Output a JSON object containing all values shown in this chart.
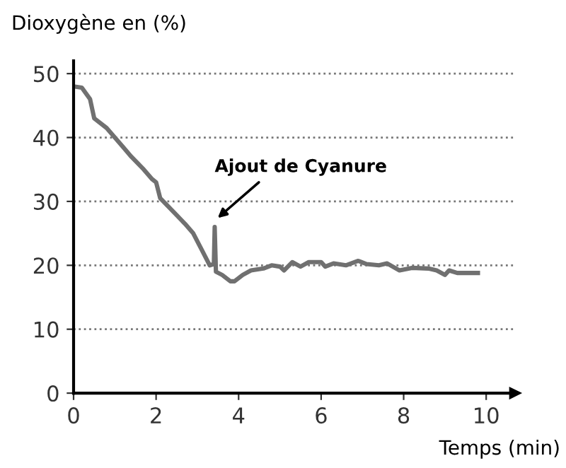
{
  "chart_data": {
    "type": "line",
    "ylabel": "Dioxygène en (%)",
    "xlabel": "Temps (min)",
    "xlim": [
      0,
      10.7
    ],
    "ylim": [
      0,
      52
    ],
    "xticks": [
      0,
      2,
      4,
      6,
      8,
      10
    ],
    "yticks": [
      0,
      10,
      20,
      30,
      40,
      50
    ],
    "grid": "y",
    "marker": "none",
    "line_style": "solid",
    "annotations": [
      {
        "text": "Ajout de Cyanure",
        "x": 3.42,
        "y": 27
      }
    ],
    "series": [
      {
        "color": "#707070",
        "x": [
          0,
          0.2,
          0.4,
          0.5,
          0.8,
          1,
          1.2,
          1.4,
          1.7,
          1.9,
          2,
          2.1,
          2.4,
          2.7,
          2.9,
          3.1,
          3.3,
          3.4,
          3.42,
          3.45,
          3.6,
          3.8,
          3.9,
          4.1,
          4.3,
          4.6,
          4.8,
          5,
          5.1,
          5.3,
          5.5,
          5.7,
          6,
          6.1,
          6.3,
          6.6,
          6.9,
          7.1,
          7.4,
          7.6,
          7.9,
          8.2,
          8.6,
          8.8,
          9,
          9.1,
          9.3,
          9.8
        ],
        "values": [
          48,
          47.8,
          46,
          43,
          41.5,
          40,
          38.5,
          37,
          35,
          33.5,
          33,
          30.5,
          28.5,
          26.5,
          25,
          22.5,
          20,
          20.2,
          26,
          19,
          18.5,
          17.5,
          17.5,
          18.5,
          19.2,
          19.5,
          20,
          19.8,
          19.2,
          20.5,
          19.8,
          20.5,
          20.5,
          19.8,
          20.3,
          20,
          20.7,
          20.2,
          20,
          20.3,
          19.2,
          19.6,
          19.5,
          19.2,
          18.5,
          19.2,
          18.8,
          18.8
        ]
      }
    ]
  }
}
